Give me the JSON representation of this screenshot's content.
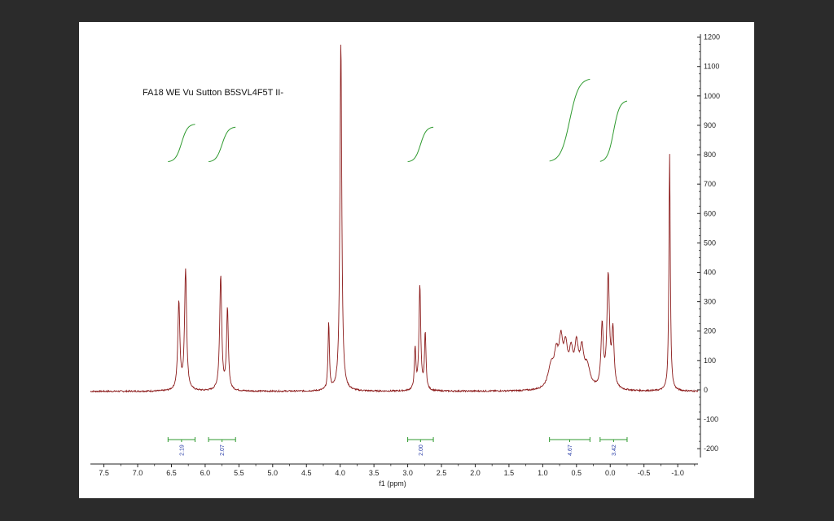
{
  "chart_data": {
    "type": "line",
    "title": "FA18 WE Vu Sutton B5SVL4F5T II-",
    "xlabel": "f1 (ppm)",
    "ylabel": "",
    "x_reversed": true,
    "xlim": [
      7.7,
      -1.3
    ],
    "ylim": [
      -230,
      1210
    ],
    "x_ticks": [
      7.5,
      7.0,
      6.5,
      6.0,
      5.5,
      5.0,
      4.5,
      4.0,
      3.5,
      3.0,
      2.5,
      2.0,
      1.5,
      1.0,
      0.5,
      0.0,
      -0.5,
      -1.0
    ],
    "x_tick_labels": [
      "7.5",
      "7.0",
      "6.5",
      "6.0",
      "5.5",
      "5.0",
      "4.5",
      "4.0",
      "3.5",
      "3.0",
      "2.5",
      "2.0",
      "1.5",
      "1.0",
      "0.5",
      "0.0",
      "-0.5",
      "-1.0"
    ],
    "y_ticks": [
      -200,
      -100,
      0,
      100,
      200,
      300,
      400,
      500,
      600,
      700,
      800,
      900,
      1000,
      1100,
      1200
    ],
    "y_tick_labels": [
      "-200",
      "-100",
      "0",
      "100",
      "200",
      "300",
      "400",
      "500",
      "600",
      "700",
      "800",
      "900",
      "1000",
      "1100",
      "1200"
    ],
    "y_axis_side": "right",
    "grid": false,
    "baseline": -5,
    "peaks": [
      {
        "ppm": 6.39,
        "height": 300,
        "width": 0.018
      },
      {
        "ppm": 6.29,
        "height": 410,
        "width": 0.018
      },
      {
        "ppm": 5.77,
        "height": 390,
        "width": 0.018
      },
      {
        "ppm": 5.67,
        "height": 275,
        "width": 0.016
      },
      {
        "ppm": 4.17,
        "height": 230,
        "width": 0.012
      },
      {
        "ppm": 3.99,
        "height": 1195,
        "width": 0.016
      },
      {
        "ppm": 2.89,
        "height": 140,
        "width": 0.013
      },
      {
        "ppm": 2.82,
        "height": 360,
        "width": 0.015
      },
      {
        "ppm": 2.74,
        "height": 195,
        "width": 0.013
      },
      {
        "ppm": 0.88,
        "height": 70,
        "width": 0.05
      },
      {
        "ppm": 0.8,
        "height": 100,
        "width": 0.04
      },
      {
        "ppm": 0.73,
        "height": 140,
        "width": 0.035
      },
      {
        "ppm": 0.66,
        "height": 120,
        "width": 0.035
      },
      {
        "ppm": 0.58,
        "height": 105,
        "width": 0.035
      },
      {
        "ppm": 0.5,
        "height": 130,
        "width": 0.035
      },
      {
        "ppm": 0.42,
        "height": 115,
        "width": 0.035
      },
      {
        "ppm": 0.34,
        "height": 70,
        "width": 0.05
      },
      {
        "ppm": 0.12,
        "height": 210,
        "width": 0.02
      },
      {
        "ppm": 0.03,
        "height": 380,
        "width": 0.022
      },
      {
        "ppm": -0.04,
        "height": 190,
        "width": 0.02
      },
      {
        "ppm": -0.88,
        "height": 805,
        "width": 0.012
      }
    ],
    "integrals": [
      {
        "label": "2.19",
        "from": 6.55,
        "to": 6.15,
        "curve_start": 775,
        "curve_end": 905
      },
      {
        "label": "2.07",
        "from": 5.95,
        "to": 5.55,
        "curve_start": 775,
        "curve_end": 895
      },
      {
        "label": "2.00",
        "from": 3.0,
        "to": 2.62,
        "curve_start": 775,
        "curve_end": 895
      },
      {
        "label": "4.67",
        "from": 0.9,
        "to": 0.3,
        "curve_start": 775,
        "curve_end": 1060
      },
      {
        "label": "3.42",
        "from": 0.15,
        "to": -0.25,
        "curve_start": 775,
        "curve_end": 985
      }
    ],
    "colors": {
      "spectrum": "#8b1a1a",
      "integral_curve": "#2f9a2f",
      "integral_bar": "#2f9a2f",
      "integral_label": "#2b3fa8",
      "axis": "#222222",
      "frame": "#2b2b2b",
      "paper": "#ffffff"
    }
  }
}
